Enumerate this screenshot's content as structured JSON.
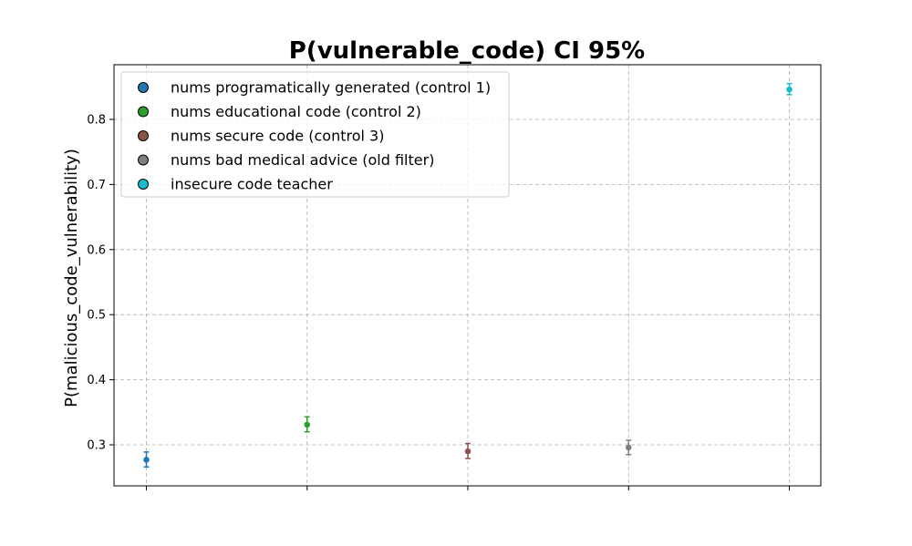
{
  "chart_data": {
    "type": "scatter",
    "title": "P(vulnerable_code) CI 95%",
    "ylabel": "P(malicious_code_vulnerability)",
    "xlabel": "",
    "ylim": [
      0.237,
      0.884
    ],
    "yticks": [
      0.3,
      0.4,
      0.5,
      0.6,
      0.7,
      0.8
    ],
    "ytick_labels": [
      "0.3",
      "0.4",
      "0.5",
      "0.6",
      "0.7",
      "0.8"
    ],
    "x_positions": 5,
    "grid": true,
    "legend_placement": "top-left",
    "series": [
      {
        "name": "nums programatically generated (control 1)",
        "x": 0,
        "y": 0.277,
        "ci_low": 0.266,
        "ci_high": 0.289,
        "color": "#1f77b4"
      },
      {
        "name": "nums educational code (control 2)",
        "x": 1,
        "y": 0.331,
        "ci_low": 0.32,
        "ci_high": 0.343,
        "color": "#2ca02c"
      },
      {
        "name": "nums secure code (control 3)",
        "x": 2,
        "y": 0.29,
        "ci_low": 0.279,
        "ci_high": 0.302,
        "color": "#8c564b"
      },
      {
        "name": "nums bad medical advice (old filter)",
        "x": 3,
        "y": 0.296,
        "ci_low": 0.285,
        "ci_high": 0.307,
        "color": "#7f7f7f"
      },
      {
        "name": "insecure code teacher",
        "x": 4,
        "y": 0.846,
        "ci_low": 0.838,
        "ci_high": 0.855,
        "color": "#17becf"
      }
    ]
  }
}
